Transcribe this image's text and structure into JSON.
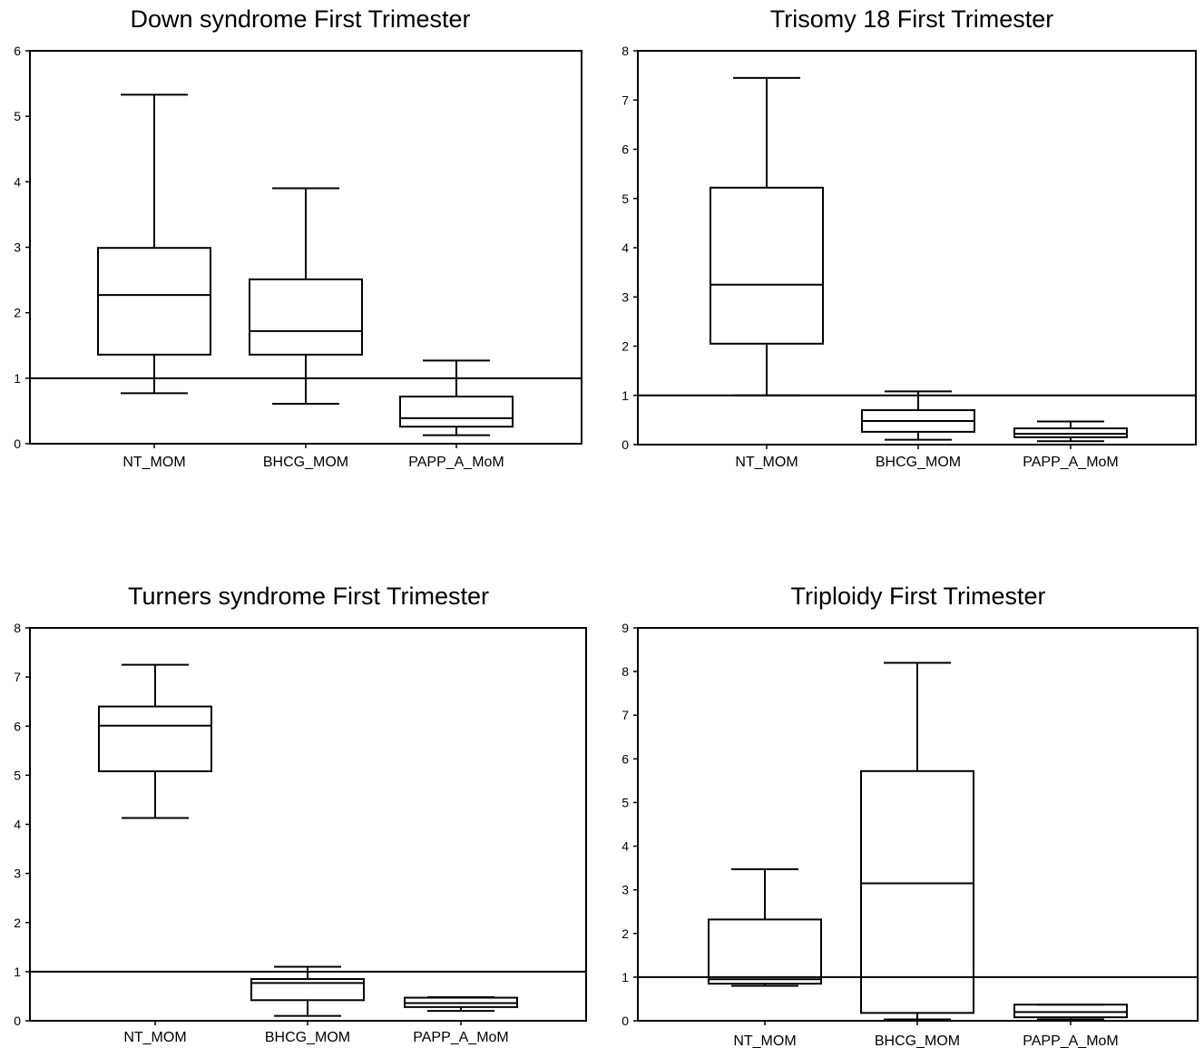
{
  "chart_data": [
    {
      "type": "box",
      "title": "Down syndrome First Trimester",
      "categories": [
        "NT_MOM",
        "BHCG_MOM",
        "PAPP_A_MoM"
      ],
      "ylim": [
        0,
        6
      ],
      "yticks": [
        0,
        1,
        2,
        3,
        4,
        5,
        6
      ],
      "reference_line": 1,
      "grid": false,
      "boxes": [
        {
          "whisker_low": 0.77,
          "q1": 1.36,
          "median": 2.27,
          "q3": 2.99,
          "whisker_high": 5.33
        },
        {
          "whisker_low": 0.61,
          "q1": 1.36,
          "median": 1.72,
          "q3": 2.51,
          "whisker_high": 3.9
        },
        {
          "whisker_low": 0.13,
          "q1": 0.26,
          "median": 0.39,
          "q3": 0.72,
          "whisker_high": 1.27
        }
      ]
    },
    {
      "type": "box",
      "title": "Trisomy 18 First Trimester",
      "categories": [
        "NT_MOM",
        "BHCG_MOM",
        "PAPP_A_MoM"
      ],
      "ylim": [
        0,
        8
      ],
      "yticks": [
        0,
        1,
        2,
        3,
        4,
        5,
        6,
        7,
        8
      ],
      "reference_line": 1,
      "grid": false,
      "boxes": [
        {
          "whisker_low": 1.0,
          "q1": 2.05,
          "median": 3.25,
          "q3": 5.22,
          "whisker_high": 7.45
        },
        {
          "whisker_low": 0.1,
          "q1": 0.26,
          "median": 0.48,
          "q3": 0.7,
          "whisker_high": 1.08
        },
        {
          "whisker_low": 0.07,
          "q1": 0.15,
          "median": 0.22,
          "q3": 0.33,
          "whisker_high": 0.47
        }
      ]
    },
    {
      "type": "box",
      "title": "Turners syndrome First Trimester",
      "categories": [
        "NT_MOM",
        "BHCG_MOM",
        "PAPP_A_MoM"
      ],
      "ylim": [
        0,
        8
      ],
      "yticks": [
        0,
        1,
        2,
        3,
        4,
        5,
        6,
        7,
        8
      ],
      "reference_line": 1,
      "grid": false,
      "boxes": [
        {
          "whisker_low": 4.13,
          "q1": 5.08,
          "median": 6.01,
          "q3": 6.4,
          "whisker_high": 7.25
        },
        {
          "whisker_low": 0.1,
          "q1": 0.42,
          "median": 0.77,
          "q3": 0.85,
          "whisker_high": 1.1
        },
        {
          "whisker_low": 0.2,
          "q1": 0.28,
          "median": 0.36,
          "q3": 0.47,
          "whisker_high": 0.48
        }
      ]
    },
    {
      "type": "box",
      "title": "Triploidy First Trimester",
      "categories": [
        "NT_MOM",
        "BHCG_MOM",
        "PAPP_A_MoM"
      ],
      "ylim": [
        0,
        9
      ],
      "yticks": [
        0,
        1,
        2,
        3,
        4,
        5,
        6,
        7,
        8,
        9
      ],
      "reference_line": 1,
      "grid": false,
      "boxes": [
        {
          "whisker_low": 0.8,
          "q1": 0.85,
          "median": 0.95,
          "q3": 2.32,
          "whisker_high": 3.47
        },
        {
          "whisker_low": 0.03,
          "q1": 0.18,
          "median": 3.15,
          "q3": 5.72,
          "whisker_high": 8.2
        },
        {
          "whisker_low": 0.03,
          "q1": 0.08,
          "median": 0.2,
          "q3": 0.37,
          "whisker_high": 0.37
        }
      ]
    }
  ]
}
